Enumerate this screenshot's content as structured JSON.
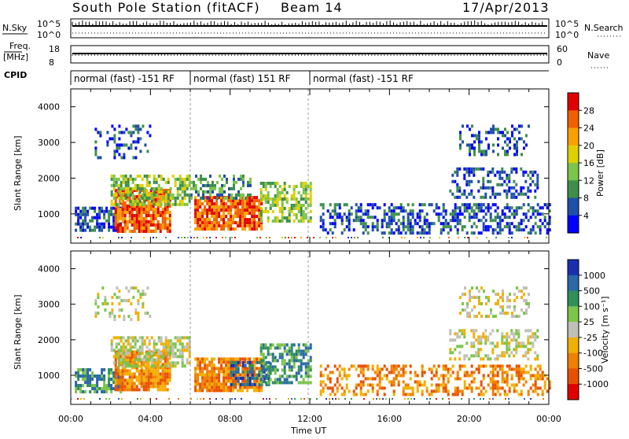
{
  "header": {
    "title": "South Pole Station (fitACF)",
    "beam": "Beam 14",
    "date": "17/Apr/2013"
  },
  "top_panels": {
    "nsky_label": "N.Sky",
    "nsky_ticks": [
      "10^5",
      "10^0"
    ],
    "nsearch_label": "N.Search",
    "nsearch_ticks": [
      "10^5",
      "10^0"
    ],
    "freq_label": "Freq.",
    "freq_unit": "[MHz]",
    "freq_ticks": [
      "18",
      "8"
    ],
    "nave_label": "Nave",
    "nave_ticks": [
      "60",
      "0"
    ],
    "cpid_label": "CPID",
    "cpid_segments": [
      {
        "label": "normal (fast) -151 RF",
        "start": 0,
        "end": 6
      },
      {
        "label": "normal (fast) 151 RF",
        "start": 6,
        "end": 12
      },
      {
        "label": "normal (fast) -151 RF",
        "start": 12,
        "end": 24
      }
    ]
  },
  "chart_data": [
    {
      "type": "heatmap",
      "quantity": "power",
      "ylabel": "Slant Range [km]",
      "xlabel": "",
      "x_range_hours": [
        0,
        24
      ],
      "ylim": [
        180,
        4500
      ],
      "yticks": [
        "1000",
        "2000",
        "3000",
        "4000"
      ],
      "colorbar_label": "Power [dB]",
      "colorbar_ticks": [
        "4",
        "8",
        "12",
        "16",
        "20",
        "24",
        "28"
      ],
      "colors": [
        "#0000ff",
        "#1f4fa8",
        "#3d8f4a",
        "#7cc44a",
        "#e0d000",
        "#f8a000",
        "#f06000",
        "#e00000"
      ],
      "regions": [
        {
          "t0": 0.2,
          "t1": 2.5,
          "r0": 500,
          "r1": 1200,
          "level": 1,
          "density": 0.7
        },
        {
          "t0": 2.2,
          "t1": 5.0,
          "r0": 550,
          "r1": 1700,
          "level": 6,
          "density": 0.85
        },
        {
          "t0": 2.0,
          "t1": 6.0,
          "r0": 1300,
          "r1": 2100,
          "level": 3,
          "density": 0.6
        },
        {
          "t0": 6.2,
          "t1": 9.6,
          "r0": 550,
          "r1": 1500,
          "level": 6,
          "density": 0.85
        },
        {
          "t0": 6.0,
          "t1": 9.0,
          "r0": 1400,
          "r1": 2100,
          "level": 2,
          "density": 0.5
        },
        {
          "t0": 9.5,
          "t1": 12.0,
          "r0": 800,
          "r1": 1900,
          "level": 3,
          "density": 0.6
        },
        {
          "t0": 1.2,
          "t1": 4.0,
          "r0": 2600,
          "r1": 3500,
          "level": 1,
          "density": 0.25
        },
        {
          "t0": 12.5,
          "t1": 24.0,
          "r0": 500,
          "r1": 1300,
          "level": 1,
          "density": 0.45
        },
        {
          "t0": 19.0,
          "t1": 23.5,
          "r0": 1500,
          "r1": 2300,
          "level": 1,
          "density": 0.4
        },
        {
          "t0": 19.5,
          "t1": 23.0,
          "r0": 2700,
          "r1": 3500,
          "level": 1,
          "density": 0.3
        }
      ]
    },
    {
      "type": "heatmap",
      "quantity": "velocity",
      "ylabel": "Slant Range [km]",
      "xlabel": "Time UT",
      "x_range_hours": [
        0,
        24
      ],
      "xticks": [
        "00:00",
        "04:00",
        "08:00",
        "12:00",
        "16:00",
        "20:00",
        "00:00"
      ],
      "ylim": [
        180,
        4500
      ],
      "yticks": [
        "1000",
        "2000",
        "3000",
        "4000"
      ],
      "colorbar_label": "Velocity [m s⁻¹]",
      "colorbar_ticks": [
        "1000",
        "500",
        "100",
        "25",
        "-25",
        "-100",
        "-500",
        "-1000"
      ],
      "colors": [
        "#1a2fb0",
        "#2a68a8",
        "#2f8f5a",
        "#7cc44a",
        "#c0c0b8",
        "#f0b000",
        "#f08000",
        "#e85000",
        "#e00000"
      ],
      "regions": [
        {
          "t0": 0.2,
          "t1": 2.5,
          "r0": 500,
          "r1": 1200,
          "level": 2,
          "density": 0.7
        },
        {
          "t0": 2.2,
          "t1": 5.0,
          "r0": 550,
          "r1": 1700,
          "level": 6,
          "density": 0.85
        },
        {
          "t0": 2.0,
          "t1": 6.0,
          "r0": 1300,
          "r1": 2100,
          "level": 4,
          "density": 0.6
        },
        {
          "t0": 6.2,
          "t1": 9.6,
          "r0": 550,
          "r1": 1500,
          "level": 6,
          "density": 0.85
        },
        {
          "t0": 8.0,
          "t1": 10.0,
          "r0": 700,
          "r1": 1400,
          "level": 1,
          "density": 0.6
        },
        {
          "t0": 9.5,
          "t1": 12.0,
          "r0": 800,
          "r1": 1900,
          "level": 2,
          "density": 0.6
        },
        {
          "t0": 1.2,
          "t1": 4.0,
          "r0": 2600,
          "r1": 3500,
          "level": 4,
          "density": 0.25
        },
        {
          "t0": 12.5,
          "t1": 24.0,
          "r0": 500,
          "r1": 1300,
          "level": 6,
          "density": 0.45
        },
        {
          "t0": 19.0,
          "t1": 23.5,
          "r0": 1500,
          "r1": 2300,
          "level": 4,
          "density": 0.4
        },
        {
          "t0": 19.5,
          "t1": 23.0,
          "r0": 2700,
          "r1": 3500,
          "level": 4,
          "density": 0.3
        }
      ]
    }
  ]
}
